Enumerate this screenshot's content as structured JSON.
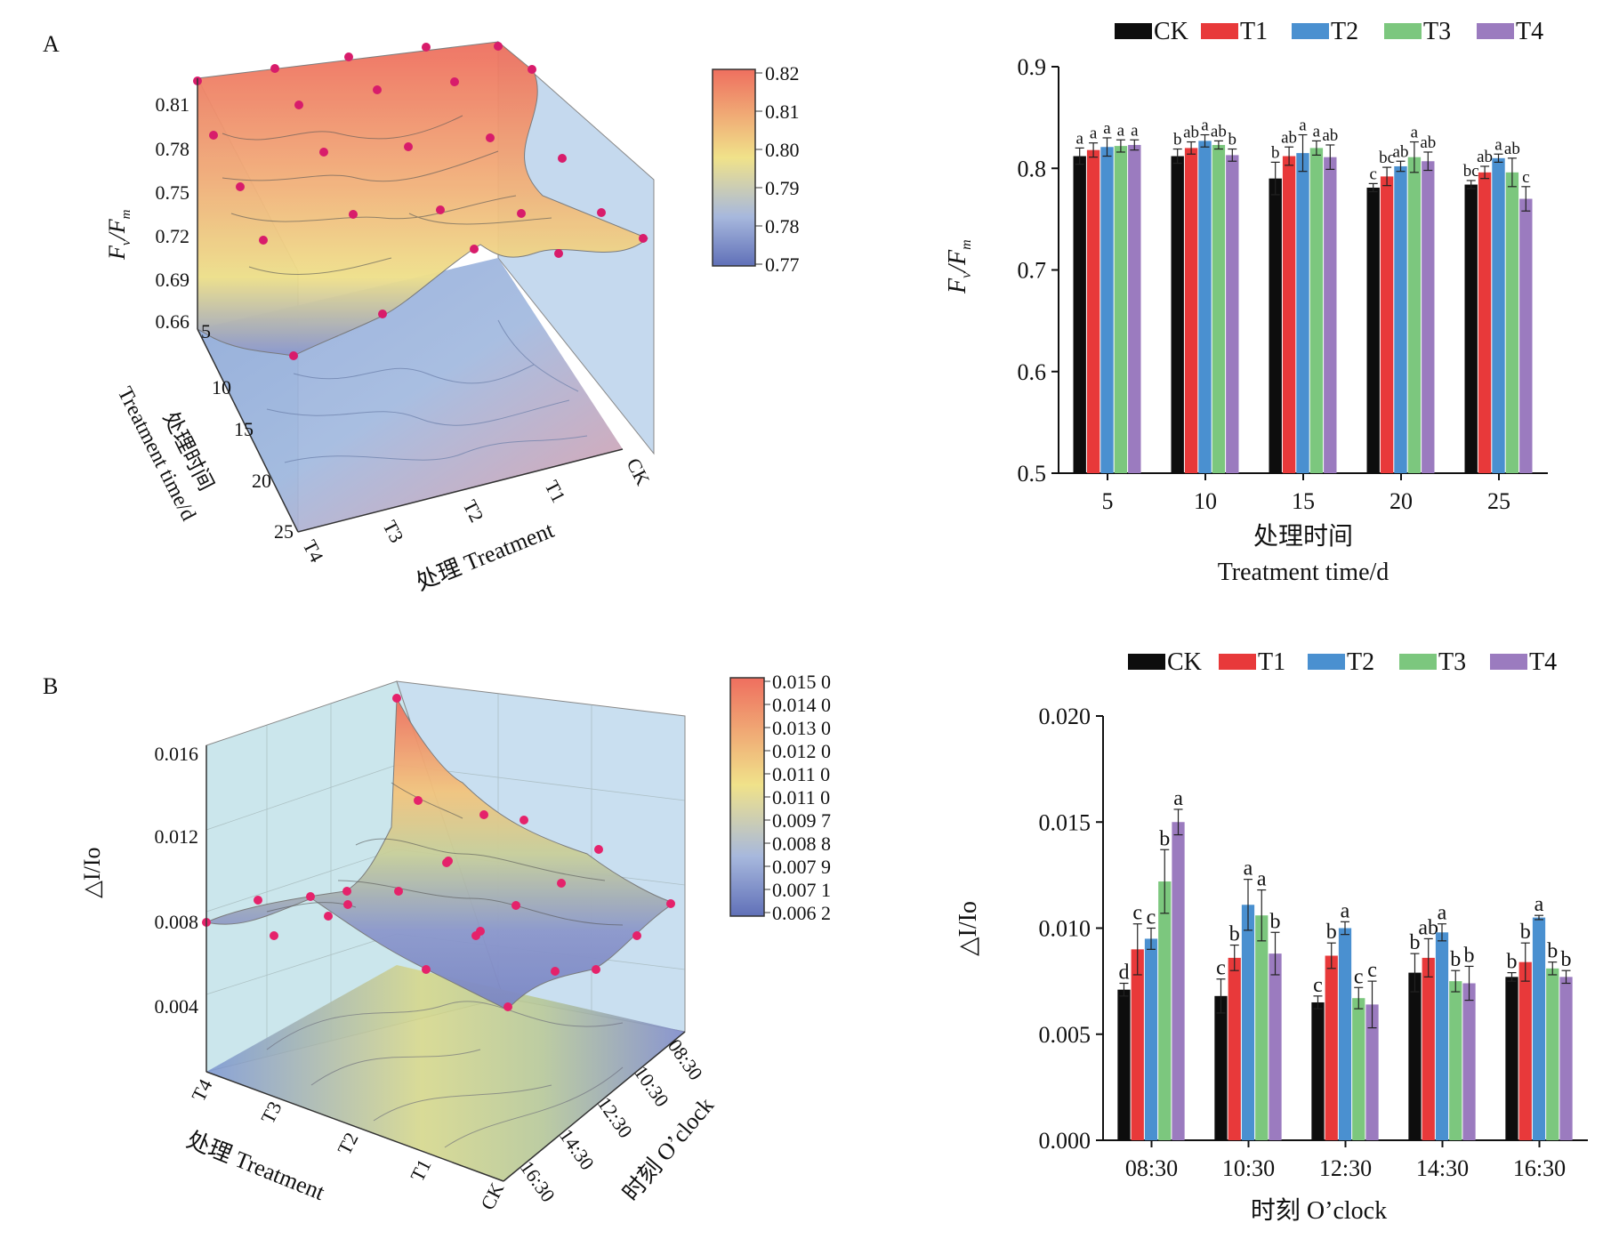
{
  "panels": {
    "A": {
      "label": "A"
    },
    "B": {
      "label": "B"
    }
  },
  "colors": {
    "CK": "#0d0d0d",
    "T1": "#e8393a",
    "T2": "#4a90d0",
    "T3": "#7cc77e",
    "T4": "#9b7bbf",
    "surface_high": "#ef6f5f",
    "surface_mid": "#f0e28a",
    "surface_low": "#7380c0",
    "point": "#d81c6b"
  },
  "surface_A": {
    "z_label_main": "F",
    "z_label_sub1": "v",
    "z_label_slash": "/F",
    "z_label_sub2": "m",
    "z_ticks": [
      "0.81",
      "0.78",
      "0.75",
      "0.72",
      "0.69",
      "0.66"
    ],
    "y_ticks": [
      "5",
      "10",
      "15",
      "20",
      "25"
    ],
    "x_ticks": [
      "CK",
      "T1",
      "T2",
      "T3",
      "T4"
    ],
    "y_label_cn": "处理时间",
    "y_label_en": "Treatment time/d",
    "x_label": "处理 Treatment",
    "colorbar_ticks": [
      "0.82",
      "0.81",
      "0.80",
      "0.79",
      "0.78",
      "0.77"
    ]
  },
  "surface_B": {
    "z_label": "△I/Io",
    "z_ticks": [
      "0.016",
      "0.012",
      "0.008",
      "0.004"
    ],
    "x_ticks": [
      "T4",
      "T3",
      "T2",
      "T1",
      "CK"
    ],
    "y_ticks": [
      "08:30",
      "10:30",
      "12:30",
      "14:30",
      "16:30"
    ],
    "x_label": "处理 Treatment",
    "y_label": "时刻 O’clock",
    "colorbar_ticks": [
      "0.015 0",
      "0.014 0",
      "0.013 0",
      "0.012 0",
      "0.011 0",
      "0.011 0",
      "0.009 7",
      "0.008 8",
      "0.007 9",
      "0.007 1",
      "0.006 2"
    ]
  },
  "chart_data": [
    {
      "type": "bar",
      "ylabel_main": "F",
      "ylabel_sub1": "v",
      "ylabel_slash": "/F",
      "ylabel_sub2": "m",
      "xlabel_cn": "处理时间",
      "xlabel_en": "Treatment time/d",
      "categories": [
        "5",
        "10",
        "15",
        "20",
        "25"
      ],
      "ylim": [
        0.5,
        0.9
      ],
      "yticks": [
        "0.5",
        "0.6",
        "0.7",
        "0.8",
        "0.9"
      ],
      "legend": "top",
      "series": [
        {
          "name": "CK",
          "values": [
            0.812,
            0.812,
            0.79,
            0.781,
            0.784
          ],
          "errors": [
            0.008,
            0.007,
            0.016,
            0.004,
            0.004
          ],
          "letters": [
            "a",
            "b",
            "b",
            "c",
            "bc"
          ]
        },
        {
          "name": "T1",
          "values": [
            0.818,
            0.82,
            0.812,
            0.792,
            0.796
          ],
          "errors": [
            0.007,
            0.006,
            0.009,
            0.009,
            0.006
          ],
          "letters": [
            "a",
            "ab",
            "ab",
            "bc",
            "ab"
          ]
        },
        {
          "name": "T2",
          "values": [
            0.821,
            0.827,
            0.815,
            0.802,
            0.81
          ],
          "errors": [
            0.009,
            0.006,
            0.018,
            0.005,
            0.004
          ],
          "letters": [
            "a",
            "a",
            "a",
            "ab",
            "a"
          ]
        },
        {
          "name": "T3",
          "values": [
            0.822,
            0.823,
            0.82,
            0.811,
            0.796
          ],
          "errors": [
            0.006,
            0.004,
            0.007,
            0.015,
            0.014
          ],
          "letters": [
            "a",
            "ab",
            "a",
            "a",
            "ab"
          ]
        },
        {
          "name": "T4",
          "values": [
            0.823,
            0.813,
            0.811,
            0.807,
            0.77
          ],
          "errors": [
            0.005,
            0.006,
            0.012,
            0.009,
            0.012
          ],
          "letters": [
            "a",
            "b",
            "ab",
            "ab",
            "c"
          ]
        }
      ]
    },
    {
      "type": "bar",
      "ylabel": "△I/Io",
      "xlabel": "时刻 O’clock",
      "categories": [
        "08:30",
        "10:30",
        "12:30",
        "14:30",
        "16:30"
      ],
      "ylim": [
        0,
        0.02
      ],
      "yticks": [
        "0.000",
        "0.005",
        "0.010",
        "0.015",
        "0.020"
      ],
      "legend": "top",
      "series": [
        {
          "name": "CK",
          "values": [
            0.0071,
            0.0068,
            0.0065,
            0.0079,
            0.0077
          ],
          "errors": [
            0.0003,
            0.0008,
            0.0003,
            0.0009,
            0.0002
          ],
          "letters": [
            "d",
            "c",
            "c",
            "b",
            "b"
          ]
        },
        {
          "name": "T1",
          "values": [
            0.009,
            0.0086,
            0.0087,
            0.0086,
            0.0084
          ],
          "errors": [
            0.0012,
            0.0006,
            0.0006,
            0.0009,
            0.0009
          ],
          "letters": [
            "c",
            "b",
            "b",
            "ab",
            "b"
          ]
        },
        {
          "name": "T2",
          "values": [
            0.0095,
            0.0111,
            0.01,
            0.0098,
            0.0105
          ],
          "errors": [
            0.0005,
            0.0012,
            0.0003,
            0.0004,
            0.0001
          ],
          "letters": [
            "c",
            "a",
            "a",
            "a",
            "a"
          ]
        },
        {
          "name": "T3",
          "values": [
            0.0122,
            0.0106,
            0.0067,
            0.0075,
            0.0081
          ],
          "errors": [
            0.0015,
            0.0012,
            0.0005,
            0.0005,
            0.0003
          ],
          "letters": [
            "b",
            "a",
            "c",
            "b",
            "b"
          ]
        },
        {
          "name": "T4",
          "values": [
            0.015,
            0.0088,
            0.0064,
            0.0074,
            0.0077
          ],
          "errors": [
            0.0006,
            0.001,
            0.0011,
            0.0008,
            0.0003
          ],
          "letters": [
            "a",
            "b",
            "c",
            "b",
            "b"
          ]
        }
      ]
    }
  ]
}
